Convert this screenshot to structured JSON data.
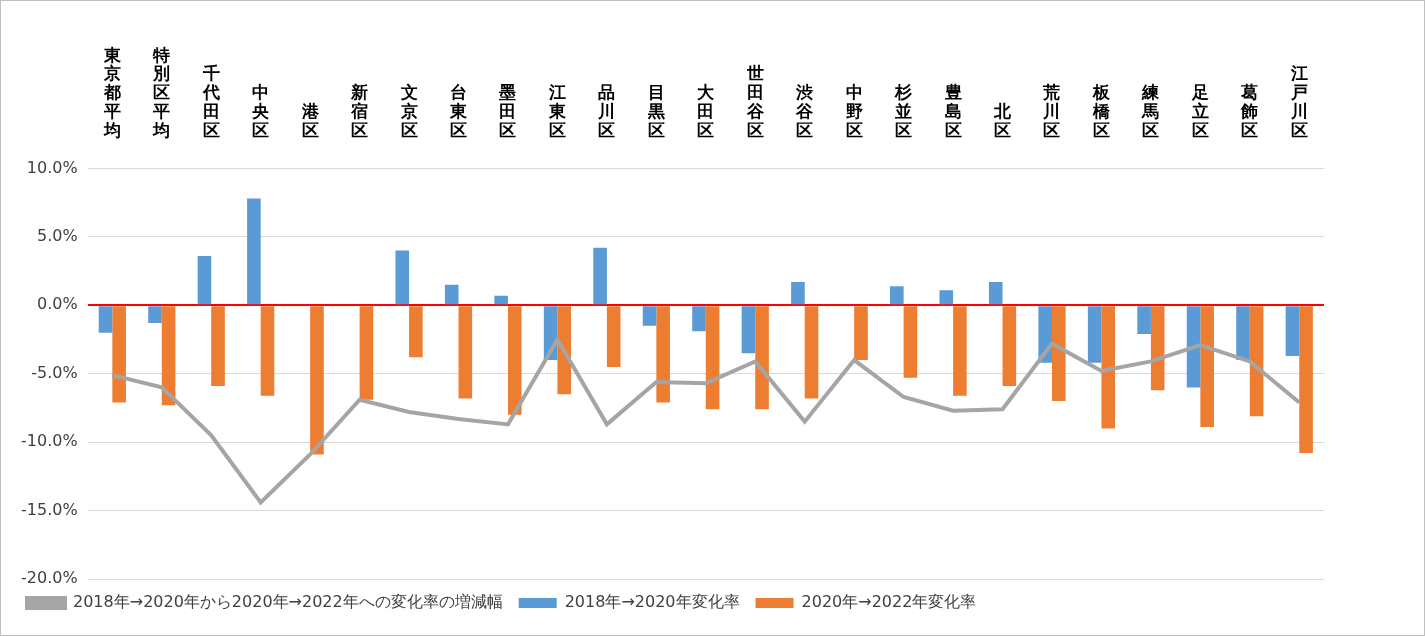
{
  "chart_data": {
    "type": "bar",
    "categories": [
      "東京都平均",
      "特別区平均",
      "千代田区",
      "中央区",
      "港区",
      "新宿区",
      "文京区",
      "台東区",
      "墨田区",
      "江東区",
      "品川区",
      "目黒区",
      "大田区",
      "世田谷区",
      "渋谷区",
      "中野区",
      "杉並区",
      "豊島区",
      "北区",
      "荒川区",
      "板橋区",
      "練馬区",
      "足立区",
      "葛飾区",
      "江戸川区"
    ],
    "series": [
      {
        "name": "2018年→2020年変化率",
        "type": "bar",
        "color": "#5b9bd5",
        "values": [
          -2.0,
          -1.3,
          3.6,
          7.8,
          0.0,
          0.0,
          4.0,
          1.5,
          0.7,
          -4.0,
          4.2,
          -1.5,
          -1.9,
          -3.5,
          1.7,
          0.0,
          1.4,
          1.1,
          1.7,
          -4.2,
          -4.2,
          -2.1,
          -6.0,
          -4.0,
          -3.7
        ]
      },
      {
        "name": "2020年→2022年変化率",
        "type": "bar",
        "color": "#ed7d31",
        "values": [
          -7.1,
          -7.3,
          -5.9,
          -6.6,
          -10.9,
          -6.9,
          -3.8,
          -6.8,
          -8.0,
          -6.5,
          -4.5,
          -7.1,
          -7.6,
          -7.6,
          -6.8,
          -4.0,
          -5.3,
          -6.6,
          -5.9,
          -7.0,
          -9.0,
          -6.2,
          -8.9,
          -8.1,
          -10.8
        ]
      },
      {
        "name": "2018年→2020年から2020年→2022年への変化率の増減幅",
        "type": "line",
        "color": "#a5a5a5",
        "values": [
          -5.1,
          -6.0,
          -9.5,
          -14.4,
          -10.9,
          -6.9,
          -7.8,
          -8.3,
          -8.7,
          -2.5,
          -8.7,
          -5.6,
          -5.7,
          -4.1,
          -8.5,
          -4.0,
          -6.7,
          -7.7,
          -7.6,
          -2.8,
          -4.8,
          -4.1,
          -2.9,
          -4.1,
          -7.1
        ]
      }
    ],
    "ylim": [
      -20,
      10
    ],
    "yticks": [
      {
        "value": 10,
        "label": "10.0%"
      },
      {
        "value": 5,
        "label": "5.0%"
      },
      {
        "value": 0,
        "label": "0.0%"
      },
      {
        "value": -5,
        "label": "-5.0%"
      },
      {
        "value": -10,
        "label": "-10.0%"
      },
      {
        "value": -15,
        "label": "-15.0%"
      },
      {
        "value": -20,
        "label": "-20.0%"
      }
    ],
    "grid": true,
    "legend": "bottom"
  }
}
